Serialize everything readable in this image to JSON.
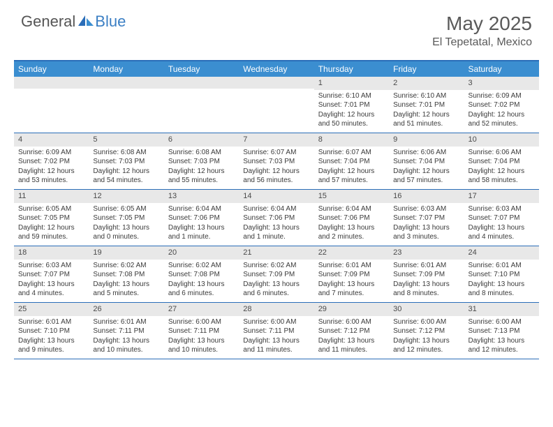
{
  "brand": {
    "text1": "General",
    "text2": "Blue"
  },
  "title": "May 2025",
  "subtitle": "El Tepetatal, Mexico",
  "colors": {
    "header_bg": "#3b8ed0",
    "header_border": "#2a6db8",
    "daynum_bg": "#e8e8e8",
    "text": "#3a3a3a",
    "title_text": "#5a5a5a",
    "logo_gray": "#555555",
    "logo_blue": "#3b7fc4"
  },
  "typography": {
    "title_fontsize": 28,
    "subtitle_fontsize": 16,
    "dayheader_fontsize": 12,
    "daynum_fontsize": 11,
    "body_fontsize": 10
  },
  "day_headers": [
    "Sunday",
    "Monday",
    "Tuesday",
    "Wednesday",
    "Thursday",
    "Friday",
    "Saturday"
  ],
  "weeks": [
    [
      {
        "num": "",
        "sunrise": "",
        "sunset": "",
        "daylight": ""
      },
      {
        "num": "",
        "sunrise": "",
        "sunset": "",
        "daylight": ""
      },
      {
        "num": "",
        "sunrise": "",
        "sunset": "",
        "daylight": ""
      },
      {
        "num": "",
        "sunrise": "",
        "sunset": "",
        "daylight": ""
      },
      {
        "num": "1",
        "sunrise": "Sunrise: 6:10 AM",
        "sunset": "Sunset: 7:01 PM",
        "daylight": "Daylight: 12 hours and 50 minutes."
      },
      {
        "num": "2",
        "sunrise": "Sunrise: 6:10 AM",
        "sunset": "Sunset: 7:01 PM",
        "daylight": "Daylight: 12 hours and 51 minutes."
      },
      {
        "num": "3",
        "sunrise": "Sunrise: 6:09 AM",
        "sunset": "Sunset: 7:02 PM",
        "daylight": "Daylight: 12 hours and 52 minutes."
      }
    ],
    [
      {
        "num": "4",
        "sunrise": "Sunrise: 6:09 AM",
        "sunset": "Sunset: 7:02 PM",
        "daylight": "Daylight: 12 hours and 53 minutes."
      },
      {
        "num": "5",
        "sunrise": "Sunrise: 6:08 AM",
        "sunset": "Sunset: 7:03 PM",
        "daylight": "Daylight: 12 hours and 54 minutes."
      },
      {
        "num": "6",
        "sunrise": "Sunrise: 6:08 AM",
        "sunset": "Sunset: 7:03 PM",
        "daylight": "Daylight: 12 hours and 55 minutes."
      },
      {
        "num": "7",
        "sunrise": "Sunrise: 6:07 AM",
        "sunset": "Sunset: 7:03 PM",
        "daylight": "Daylight: 12 hours and 56 minutes."
      },
      {
        "num": "8",
        "sunrise": "Sunrise: 6:07 AM",
        "sunset": "Sunset: 7:04 PM",
        "daylight": "Daylight: 12 hours and 57 minutes."
      },
      {
        "num": "9",
        "sunrise": "Sunrise: 6:06 AM",
        "sunset": "Sunset: 7:04 PM",
        "daylight": "Daylight: 12 hours and 57 minutes."
      },
      {
        "num": "10",
        "sunrise": "Sunrise: 6:06 AM",
        "sunset": "Sunset: 7:04 PM",
        "daylight": "Daylight: 12 hours and 58 minutes."
      }
    ],
    [
      {
        "num": "11",
        "sunrise": "Sunrise: 6:05 AM",
        "sunset": "Sunset: 7:05 PM",
        "daylight": "Daylight: 12 hours and 59 minutes."
      },
      {
        "num": "12",
        "sunrise": "Sunrise: 6:05 AM",
        "sunset": "Sunset: 7:05 PM",
        "daylight": "Daylight: 13 hours and 0 minutes."
      },
      {
        "num": "13",
        "sunrise": "Sunrise: 6:04 AM",
        "sunset": "Sunset: 7:06 PM",
        "daylight": "Daylight: 13 hours and 1 minute."
      },
      {
        "num": "14",
        "sunrise": "Sunrise: 6:04 AM",
        "sunset": "Sunset: 7:06 PM",
        "daylight": "Daylight: 13 hours and 1 minute."
      },
      {
        "num": "15",
        "sunrise": "Sunrise: 6:04 AM",
        "sunset": "Sunset: 7:06 PM",
        "daylight": "Daylight: 13 hours and 2 minutes."
      },
      {
        "num": "16",
        "sunrise": "Sunrise: 6:03 AM",
        "sunset": "Sunset: 7:07 PM",
        "daylight": "Daylight: 13 hours and 3 minutes."
      },
      {
        "num": "17",
        "sunrise": "Sunrise: 6:03 AM",
        "sunset": "Sunset: 7:07 PM",
        "daylight": "Daylight: 13 hours and 4 minutes."
      }
    ],
    [
      {
        "num": "18",
        "sunrise": "Sunrise: 6:03 AM",
        "sunset": "Sunset: 7:07 PM",
        "daylight": "Daylight: 13 hours and 4 minutes."
      },
      {
        "num": "19",
        "sunrise": "Sunrise: 6:02 AM",
        "sunset": "Sunset: 7:08 PM",
        "daylight": "Daylight: 13 hours and 5 minutes."
      },
      {
        "num": "20",
        "sunrise": "Sunrise: 6:02 AM",
        "sunset": "Sunset: 7:08 PM",
        "daylight": "Daylight: 13 hours and 6 minutes."
      },
      {
        "num": "21",
        "sunrise": "Sunrise: 6:02 AM",
        "sunset": "Sunset: 7:09 PM",
        "daylight": "Daylight: 13 hours and 6 minutes."
      },
      {
        "num": "22",
        "sunrise": "Sunrise: 6:01 AM",
        "sunset": "Sunset: 7:09 PM",
        "daylight": "Daylight: 13 hours and 7 minutes."
      },
      {
        "num": "23",
        "sunrise": "Sunrise: 6:01 AM",
        "sunset": "Sunset: 7:09 PM",
        "daylight": "Daylight: 13 hours and 8 minutes."
      },
      {
        "num": "24",
        "sunrise": "Sunrise: 6:01 AM",
        "sunset": "Sunset: 7:10 PM",
        "daylight": "Daylight: 13 hours and 8 minutes."
      }
    ],
    [
      {
        "num": "25",
        "sunrise": "Sunrise: 6:01 AM",
        "sunset": "Sunset: 7:10 PM",
        "daylight": "Daylight: 13 hours and 9 minutes."
      },
      {
        "num": "26",
        "sunrise": "Sunrise: 6:01 AM",
        "sunset": "Sunset: 7:11 PM",
        "daylight": "Daylight: 13 hours and 10 minutes."
      },
      {
        "num": "27",
        "sunrise": "Sunrise: 6:00 AM",
        "sunset": "Sunset: 7:11 PM",
        "daylight": "Daylight: 13 hours and 10 minutes."
      },
      {
        "num": "28",
        "sunrise": "Sunrise: 6:00 AM",
        "sunset": "Sunset: 7:11 PM",
        "daylight": "Daylight: 13 hours and 11 minutes."
      },
      {
        "num": "29",
        "sunrise": "Sunrise: 6:00 AM",
        "sunset": "Sunset: 7:12 PM",
        "daylight": "Daylight: 13 hours and 11 minutes."
      },
      {
        "num": "30",
        "sunrise": "Sunrise: 6:00 AM",
        "sunset": "Sunset: 7:12 PM",
        "daylight": "Daylight: 13 hours and 12 minutes."
      },
      {
        "num": "31",
        "sunrise": "Sunrise: 6:00 AM",
        "sunset": "Sunset: 7:13 PM",
        "daylight": "Daylight: 13 hours and 12 minutes."
      }
    ]
  ]
}
